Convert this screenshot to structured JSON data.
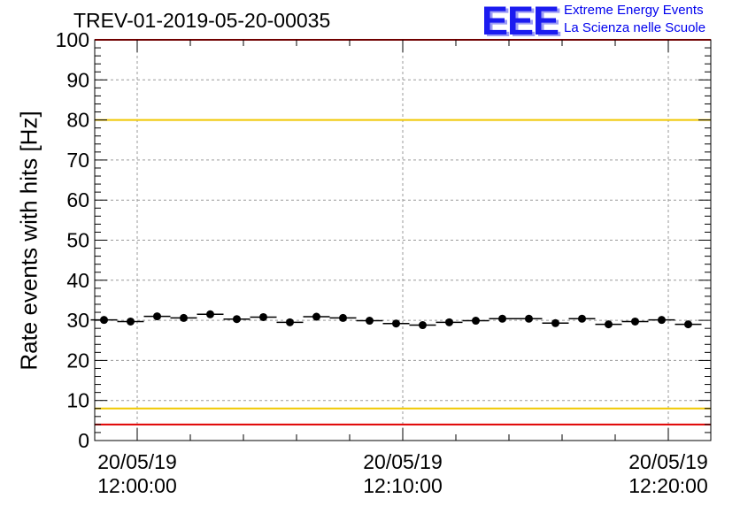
{
  "header": {
    "title": "TREV-01-2019-05-20-00035",
    "logo": "EEE",
    "logo_line1": "Extreme Energy Events",
    "logo_line2": "La Scienza nelle Scuole"
  },
  "chart_data": {
    "type": "scatter",
    "title": "TREV-01-2019-05-20-00035",
    "xlabel": "",
    "ylabel": "Rate events with hits [Hz]",
    "ylim": [
      0,
      100
    ],
    "xlim_minutes": [
      -1.6,
      21.6
    ],
    "yticks": [
      0,
      10,
      20,
      30,
      40,
      50,
      60,
      70,
      80,
      90,
      100
    ],
    "xticks": [
      {
        "minute": 0,
        "date": "20/05/19",
        "time": "12:00:00"
      },
      {
        "minute": 10,
        "date": "20/05/19",
        "time": "12:10:00"
      },
      {
        "minute": 20,
        "date": "20/05/19",
        "time": "12:20:00"
      }
    ],
    "grid": true,
    "points": [
      {
        "minute": -1.25,
        "y": 30.1
      },
      {
        "minute": -0.25,
        "y": 29.7
      },
      {
        "minute": 0.75,
        "y": 31.0
      },
      {
        "minute": 1.75,
        "y": 30.6
      },
      {
        "minute": 2.75,
        "y": 31.5
      },
      {
        "minute": 3.75,
        "y": 30.3
      },
      {
        "minute": 4.75,
        "y": 30.8
      },
      {
        "minute": 5.75,
        "y": 29.5
      },
      {
        "minute": 6.75,
        "y": 30.9
      },
      {
        "minute": 7.75,
        "y": 30.6
      },
      {
        "minute": 8.75,
        "y": 29.9
      },
      {
        "minute": 9.75,
        "y": 29.2
      },
      {
        "minute": 10.75,
        "y": 28.8
      },
      {
        "minute": 11.75,
        "y": 29.5
      },
      {
        "minute": 12.75,
        "y": 29.9
      },
      {
        "minute": 13.75,
        "y": 30.4
      },
      {
        "minute": 14.75,
        "y": 30.4
      },
      {
        "minute": 15.75,
        "y": 29.3
      },
      {
        "minute": 16.75,
        "y": 30.4
      },
      {
        "minute": 17.75,
        "y": 29.0
      },
      {
        "minute": 18.75,
        "y": 29.7
      },
      {
        "minute": 19.75,
        "y": 30.1
      },
      {
        "minute": 20.75,
        "y": 29.0
      }
    ],
    "bin_width_minutes": 1.0,
    "reference_lines": [
      {
        "y": 100,
        "color": "#e00000"
      },
      {
        "y": 80,
        "color": "#f0c800"
      },
      {
        "y": 8,
        "color": "#f0c800"
      },
      {
        "y": 4,
        "color": "#e00000"
      }
    ]
  }
}
